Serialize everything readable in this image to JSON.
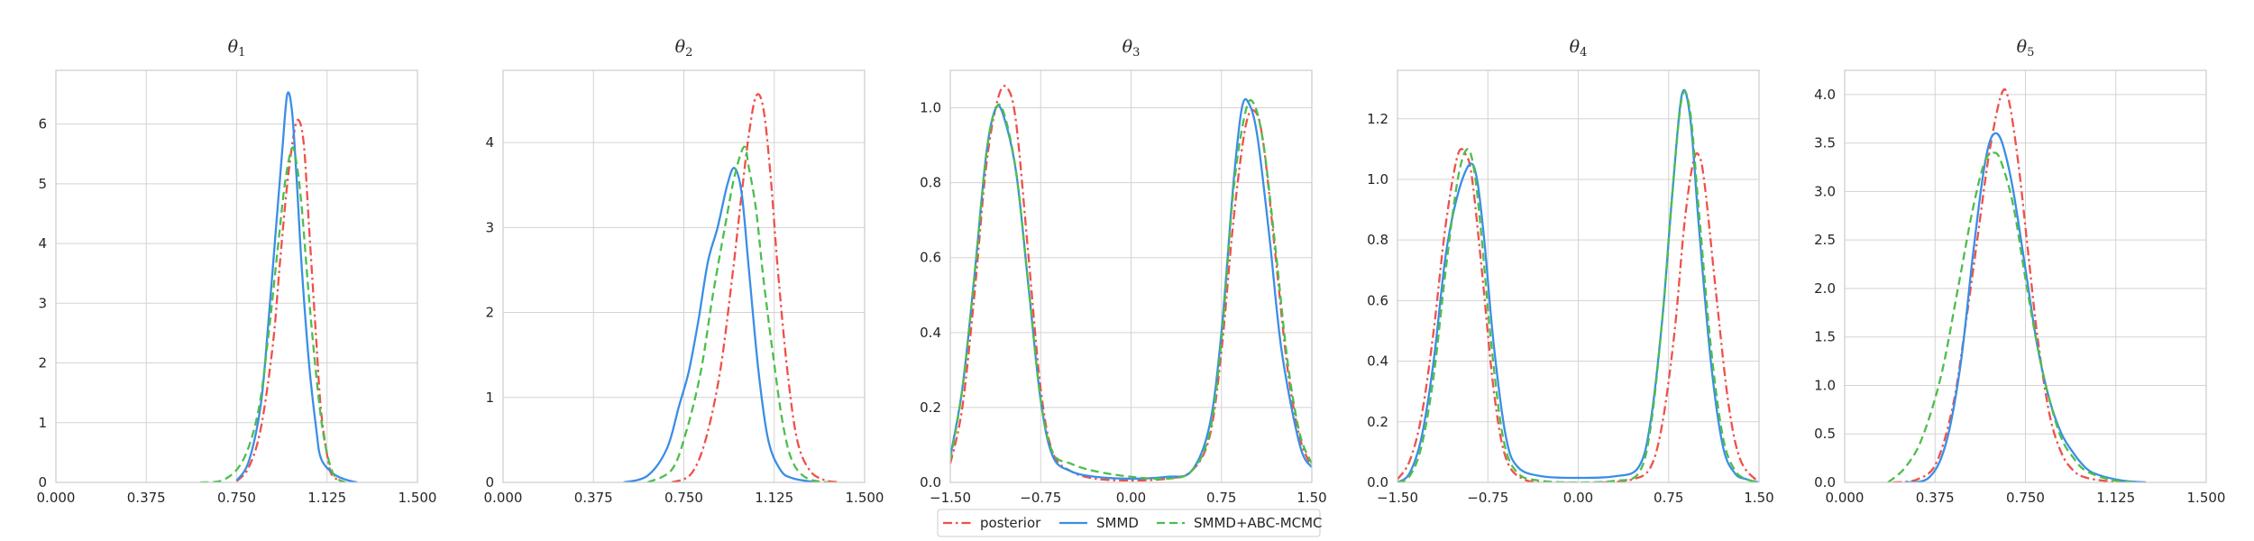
{
  "legend": {
    "placement": "bottom-center",
    "entries": [
      {
        "label": "posterior",
        "color": "#f0504a",
        "dash": "dashdot"
      },
      {
        "label": "SMMD",
        "color": "#3a8ee6",
        "dash": "solid"
      },
      {
        "label": "SMMD+ABC-MCMC",
        "color": "#4cbe4c",
        "dash": "dashed"
      }
    ]
  },
  "chart_data": [
    {
      "type": "line",
      "title": "θ",
      "title_sub": "1",
      "grid": true,
      "xlim": [
        0,
        1.5
      ],
      "ylim": [
        0,
        6.9
      ],
      "xticks": [
        0,
        0.375,
        0.75,
        1.125,
        1.5
      ],
      "xtick_labels": [
        "0.000",
        "0.375",
        "0.750",
        "1.125",
        "1.500"
      ],
      "yticks": [
        0,
        1,
        2,
        3,
        4,
        5,
        6
      ],
      "ytick_labels": [
        "0",
        "1",
        "2",
        "3",
        "4",
        "5",
        "6"
      ],
      "series": [
        {
          "name": "posterior",
          "x": [
            0.75,
            0.8,
            0.85,
            0.9,
            0.93,
            0.96,
            0.99,
            1.01,
            1.03,
            1.05,
            1.08,
            1.1,
            1.13,
            1.15,
            1.2
          ],
          "y": [
            0.02,
            0.25,
            0.9,
            2.3,
            3.7,
            5.0,
            5.9,
            6.05,
            5.6,
            4.3,
            2.4,
            1.2,
            0.35,
            0.1,
            0.0
          ]
        },
        {
          "name": "SMMD",
          "x": [
            0.75,
            0.8,
            0.85,
            0.88,
            0.91,
            0.94,
            0.96,
            0.98,
            1.0,
            1.02,
            1.05,
            1.08,
            1.1,
            1.15,
            1.2,
            1.25
          ],
          "y": [
            0.03,
            0.35,
            1.3,
            2.6,
            4.1,
            5.6,
            6.5,
            6.2,
            5.0,
            3.6,
            2.0,
            0.9,
            0.4,
            0.15,
            0.05,
            0.0
          ]
        },
        {
          "name": "SMMD+ABC-MCMC",
          "x": [
            0.6,
            0.7,
            0.78,
            0.84,
            0.88,
            0.92,
            0.95,
            0.98,
            1.0,
            1.02,
            1.05,
            1.08,
            1.11,
            1.15,
            1.2
          ],
          "y": [
            0.0,
            0.05,
            0.4,
            1.2,
            2.4,
            3.9,
            5.0,
            5.6,
            5.3,
            4.6,
            3.1,
            1.8,
            0.8,
            0.15,
            0.0
          ]
        }
      ]
    },
    {
      "type": "line",
      "title": "θ",
      "title_sub": "2",
      "grid": true,
      "xlim": [
        0,
        1.5
      ],
      "ylim": [
        0,
        4.85
      ],
      "xticks": [
        0,
        0.375,
        0.75,
        1.125,
        1.5
      ],
      "xtick_labels": [
        "0.000",
        "0.375",
        "0.750",
        "1.125",
        "1.500"
      ],
      "yticks": [
        0,
        1,
        2,
        3,
        4
      ],
      "ytick_labels": [
        "0",
        "1",
        "2",
        "3",
        "4"
      ],
      "series": [
        {
          "name": "posterior",
          "x": [
            0.7,
            0.78,
            0.84,
            0.9,
            0.95,
            0.99,
            1.02,
            1.05,
            1.08,
            1.11,
            1.14,
            1.18,
            1.22,
            1.27,
            1.33,
            1.4
          ],
          "y": [
            0.0,
            0.1,
            0.5,
            1.3,
            2.4,
            3.4,
            4.1,
            4.55,
            4.4,
            3.6,
            2.5,
            1.3,
            0.5,
            0.15,
            0.03,
            0.0
          ]
        },
        {
          "name": "SMMD",
          "x": [
            0.5,
            0.6,
            0.68,
            0.73,
            0.77,
            0.81,
            0.85,
            0.89,
            0.93,
            0.96,
            0.99,
            1.02,
            1.06,
            1.1,
            1.15,
            1.2,
            1.3
          ],
          "y": [
            0.0,
            0.08,
            0.4,
            0.9,
            1.3,
            1.9,
            2.6,
            3.0,
            3.5,
            3.7,
            3.4,
            2.5,
            1.3,
            0.5,
            0.15,
            0.05,
            0.0
          ]
        },
        {
          "name": "SMMD+ABC-MCMC",
          "x": [
            0.6,
            0.7,
            0.76,
            0.82,
            0.87,
            0.92,
            0.96,
            1.0,
            1.02,
            1.05,
            1.08,
            1.12,
            1.16,
            1.2,
            1.26,
            1.35
          ],
          "y": [
            0.0,
            0.15,
            0.6,
            1.3,
            2.2,
            3.0,
            3.6,
            3.95,
            3.7,
            3.2,
            2.4,
            1.5,
            0.7,
            0.25,
            0.05,
            0.0
          ]
        }
      ]
    },
    {
      "type": "line",
      "title": "θ",
      "title_sub": "3",
      "grid": true,
      "xlim": [
        -1.5,
        1.5
      ],
      "ylim": [
        0,
        1.1
      ],
      "xticks": [
        -1.5,
        -0.75,
        0,
        0.75,
        1.5
      ],
      "xtick_labels": [
        "−1.50",
        "−0.75",
        "0.00",
        "0.75",
        "1.50"
      ],
      "yticks": [
        0,
        0.2,
        0.4,
        0.6,
        0.8,
        1.0
      ],
      "ytick_labels": [
        "0.0",
        "0.2",
        "0.4",
        "0.6",
        "0.8",
        "1.0"
      ],
      "series": [
        {
          "name": "posterior",
          "x": [
            -1.5,
            -1.4,
            -1.3,
            -1.2,
            -1.1,
            -1.02,
            -0.95,
            -0.85,
            -0.75,
            -0.65,
            -0.5,
            -0.3,
            0.0,
            0.3,
            0.5,
            0.65,
            0.75,
            0.85,
            0.95,
            1.03,
            1.1,
            1.2,
            1.3,
            1.4,
            1.5
          ],
          "y": [
            0.05,
            0.2,
            0.5,
            0.85,
            1.03,
            1.05,
            0.95,
            0.6,
            0.25,
            0.08,
            0.03,
            0.01,
            0.005,
            0.01,
            0.03,
            0.12,
            0.35,
            0.7,
            0.95,
            0.99,
            0.9,
            0.6,
            0.3,
            0.12,
            0.04
          ]
        },
        {
          "name": "SMMD",
          "x": [
            -1.5,
            -1.4,
            -1.3,
            -1.2,
            -1.12,
            -1.05,
            -0.95,
            -0.85,
            -0.75,
            -0.65,
            -0.5,
            -0.3,
            0.0,
            0.3,
            0.5,
            0.65,
            0.75,
            0.85,
            0.92,
            0.98,
            1.05,
            1.15,
            1.25,
            1.4,
            1.5
          ],
          "y": [
            0.07,
            0.25,
            0.55,
            0.88,
            1.0,
            0.97,
            0.82,
            0.52,
            0.22,
            0.07,
            0.03,
            0.015,
            0.01,
            0.015,
            0.03,
            0.15,
            0.4,
            0.8,
            1.0,
            1.01,
            0.92,
            0.65,
            0.35,
            0.1,
            0.04
          ]
        },
        {
          "name": "SMMD+ABC-MCMC",
          "x": [
            -1.5,
            -1.4,
            -1.3,
            -1.2,
            -1.12,
            -1.05,
            -0.95,
            -0.85,
            -0.75,
            -0.65,
            -0.5,
            -0.3,
            0.0,
            0.3,
            0.5,
            0.65,
            0.75,
            0.85,
            0.95,
            1.02,
            1.1,
            1.2,
            1.3,
            1.4,
            1.5
          ],
          "y": [
            0.06,
            0.25,
            0.55,
            0.88,
            1.0,
            0.98,
            0.82,
            0.52,
            0.22,
            0.08,
            0.05,
            0.03,
            0.015,
            0.01,
            0.03,
            0.13,
            0.38,
            0.78,
            0.99,
            1.01,
            0.9,
            0.62,
            0.32,
            0.13,
            0.05
          ]
        }
      ]
    },
    {
      "type": "line",
      "title": "θ",
      "title_sub": "4",
      "grid": true,
      "xlim": [
        -1.5,
        1.5
      ],
      "ylim": [
        0,
        1.36
      ],
      "xticks": [
        -1.5,
        -0.75,
        0,
        0.75,
        1.5
      ],
      "xtick_labels": [
        "−1.50",
        "−0.75",
        "0.00",
        "0.75",
        "1.50"
      ],
      "yticks": [
        0,
        0.2,
        0.4,
        0.6,
        0.8,
        1.0,
        1.2
      ],
      "ytick_labels": [
        "0.0",
        "0.2",
        "0.4",
        "0.6",
        "0.8",
        "1.0",
        "1.2"
      ],
      "series": [
        {
          "name": "posterior",
          "x": [
            -1.5,
            -1.4,
            -1.3,
            -1.2,
            -1.1,
            -1.0,
            -0.93,
            -0.88,
            -0.8,
            -0.7,
            -0.6,
            -0.45,
            -0.2,
            0.2,
            0.45,
            0.6,
            0.7,
            0.8,
            0.88,
            0.95,
            1.0,
            1.05,
            1.15,
            1.25,
            1.35,
            1.5
          ],
          "y": [
            0.01,
            0.07,
            0.22,
            0.5,
            0.85,
            1.08,
            1.08,
            1.0,
            0.7,
            0.3,
            0.08,
            0.01,
            0.0,
            0.0,
            0.01,
            0.05,
            0.2,
            0.5,
            0.85,
            1.05,
            1.08,
            0.98,
            0.6,
            0.25,
            0.07,
            0.0
          ]
        },
        {
          "name": "SMMD",
          "x": [
            -1.5,
            -1.4,
            -1.3,
            -1.2,
            -1.1,
            -1.0,
            -0.9,
            -0.84,
            -0.78,
            -0.7,
            -0.6,
            -0.5,
            -0.3,
            0.0,
            0.3,
            0.5,
            0.6,
            0.7,
            0.78,
            0.86,
            0.93,
            1.0,
            1.1,
            1.2,
            1.3,
            1.4,
            1.5
          ],
          "y": [
            0.0,
            0.03,
            0.15,
            0.4,
            0.75,
            0.95,
            1.05,
            1.0,
            0.8,
            0.45,
            0.15,
            0.05,
            0.02,
            0.015,
            0.02,
            0.05,
            0.2,
            0.55,
            0.95,
            1.28,
            1.2,
            0.85,
            0.4,
            0.12,
            0.03,
            0.01,
            0.0
          ]
        },
        {
          "name": "SMMD+ABC-MCMC",
          "x": [
            -1.5,
            -1.4,
            -1.3,
            -1.2,
            -1.1,
            -1.0,
            -0.92,
            -0.86,
            -0.8,
            -0.72,
            -0.62,
            -0.5,
            -0.3,
            0.0,
            0.3,
            0.5,
            0.6,
            0.7,
            0.78,
            0.86,
            0.93,
            1.0,
            1.1,
            1.2,
            1.3,
            1.4,
            1.5
          ],
          "y": [
            0.0,
            0.02,
            0.12,
            0.35,
            0.7,
            1.0,
            1.1,
            1.02,
            0.8,
            0.45,
            0.14,
            0.03,
            0.005,
            0.0,
            0.005,
            0.03,
            0.18,
            0.55,
            0.95,
            1.27,
            1.22,
            0.9,
            0.45,
            0.15,
            0.04,
            0.01,
            0.0
          ]
        }
      ]
    },
    {
      "type": "line",
      "title": "θ",
      "title_sub": "5",
      "grid": true,
      "xlim": [
        0,
        1.5
      ],
      "ylim": [
        0,
        4.25
      ],
      "xticks": [
        0,
        0.375,
        0.75,
        1.125,
        1.5
      ],
      "xtick_labels": [
        "0.000",
        "0.375",
        "0.750",
        "1.125",
        "1.500"
      ],
      "yticks": [
        0,
        0.5,
        1.0,
        1.5,
        2.0,
        2.5,
        3.0,
        3.5,
        4.0
      ],
      "ytick_labels": [
        "0.0",
        "0.5",
        "1.0",
        "1.5",
        "2.0",
        "2.5",
        "3.0",
        "3.5",
        "4.0"
      ],
      "series": [
        {
          "name": "posterior",
          "x": [
            0.2,
            0.3,
            0.38,
            0.45,
            0.5,
            0.55,
            0.6,
            0.65,
            0.68,
            0.72,
            0.76,
            0.8,
            0.85,
            0.9,
            0.95,
            1.0,
            1.1,
            1.2
          ],
          "y": [
            0.0,
            0.03,
            0.2,
            0.8,
            1.6,
            2.5,
            3.4,
            4.0,
            3.95,
            3.3,
            2.4,
            1.5,
            0.7,
            0.3,
            0.12,
            0.05,
            0.01,
            0.0
          ]
        },
        {
          "name": "SMMD",
          "x": [
            0.25,
            0.35,
            0.42,
            0.48,
            0.53,
            0.57,
            0.6,
            0.63,
            0.66,
            0.7,
            0.75,
            0.8,
            0.85,
            0.9,
            0.95,
            1.0,
            1.05,
            1.15,
            1.25
          ],
          "y": [
            0.0,
            0.05,
            0.4,
            1.2,
            2.3,
            3.1,
            3.5,
            3.6,
            3.45,
            3.0,
            2.2,
            1.4,
            0.85,
            0.5,
            0.3,
            0.15,
            0.08,
            0.02,
            0.0
          ]
        },
        {
          "name": "SMMD+ABC-MCMC",
          "x": [
            0.18,
            0.25,
            0.32,
            0.4,
            0.47,
            0.53,
            0.58,
            0.62,
            0.65,
            0.7,
            0.75,
            0.8,
            0.85,
            0.9,
            0.95,
            1.0,
            1.1,
            1.2
          ],
          "y": [
            0.0,
            0.15,
            0.45,
            1.1,
            2.0,
            2.8,
            3.3,
            3.4,
            3.3,
            2.85,
            2.1,
            1.4,
            0.85,
            0.45,
            0.25,
            0.12,
            0.03,
            0.0
          ]
        }
      ]
    }
  ]
}
